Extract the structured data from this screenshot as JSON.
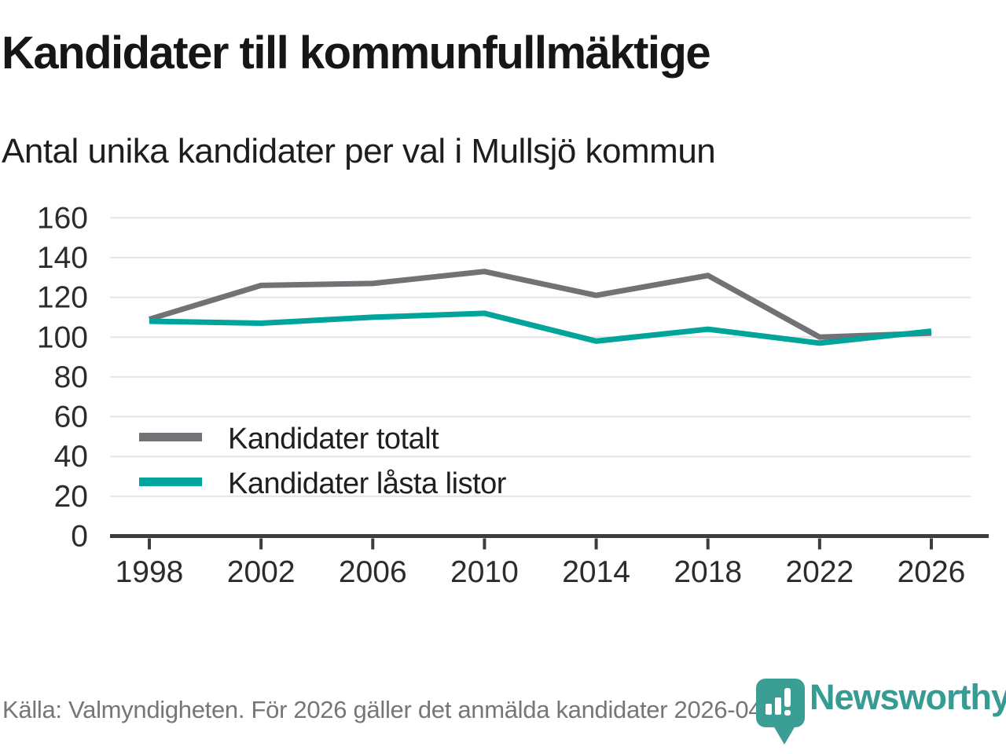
{
  "header": {
    "title": "Kandidater till kommunfullmäktige",
    "subtitle": "Antal unika kandidater per val i Mullsjö kommun"
  },
  "chart_data": {
    "type": "line",
    "x": [
      1998,
      2002,
      2006,
      2010,
      2014,
      2018,
      2022,
      2026
    ],
    "series": [
      {
        "name": "Kandidater totalt",
        "color": "#727176",
        "values": [
          109,
          126,
          127,
          133,
          121,
          131,
          100,
          102
        ]
      },
      {
        "name": "Kandidater låsta listor",
        "color": "#00a49a",
        "values": [
          108,
          107,
          110,
          112,
          98,
          104,
          97,
          103
        ]
      }
    ],
    "ylim": [
      0,
      160
    ],
    "yticks": [
      0,
      20,
      40,
      60,
      80,
      100,
      120,
      140,
      160
    ],
    "grid": true,
    "legend_position": "inside-left-middle"
  },
  "footer": {
    "source": "Källa: Valmyndigheten. För 2026 gäller det anmälda kandidater 2026-04-10.",
    "brand": "Newsworthy"
  },
  "colors": {
    "brand_teal": "#369b92",
    "axis": "#3d3d3d",
    "grid": "#e4e4e4",
    "source_text": "#767676"
  }
}
